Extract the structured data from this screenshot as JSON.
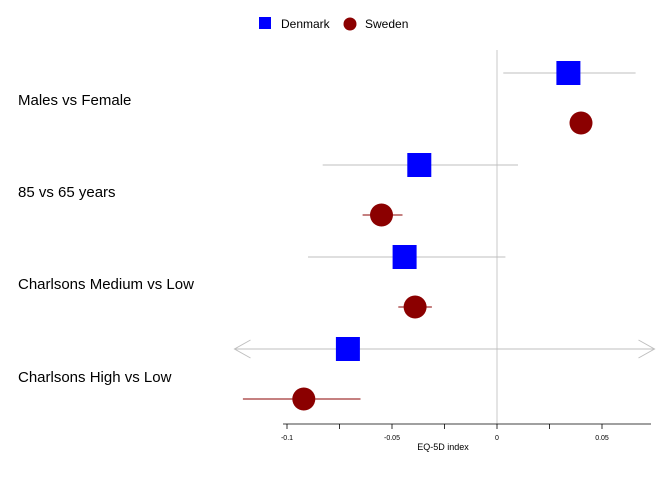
{
  "chart_data": {
    "type": "forest",
    "xlabel": "EQ-5D index",
    "xlim": [
      -0.125,
      0.075
    ],
    "xticks": [
      -0.1,
      -0.05,
      0,
      0.05
    ],
    "xtick_labels": [
      "-0.1",
      "-0.05",
      "0",
      "0.05"
    ],
    "reference_line": 0,
    "legend_position": "top-center",
    "categories": [
      "Males vs Female",
      "85 vs 65 years",
      "Charlsons Medium vs Low",
      "Charlsons High vs Low"
    ],
    "series": [
      {
        "name": "Denmark",
        "marker": "square",
        "color": "#0000ff",
        "ci_color": "#bfbfbf",
        "estimates": [
          0.034,
          -0.037,
          -0.044,
          -0.071
        ],
        "lower": [
          0.003,
          -0.083,
          -0.09,
          -0.125
        ],
        "upper": [
          0.066,
          0.01,
          0.004,
          0.075
        ],
        "truncated_low": [
          false,
          false,
          false,
          true
        ],
        "truncated_high": [
          false,
          false,
          false,
          true
        ]
      },
      {
        "name": "Sweden",
        "marker": "circle",
        "color": "#8b0000",
        "ci_color": "#8b0000",
        "estimates": [
          0.04,
          -0.055,
          -0.039,
          -0.092
        ],
        "lower": [
          0.04,
          -0.064,
          -0.047,
          -0.121
        ],
        "upper": [
          0.04,
          -0.045,
          -0.031,
          -0.065
        ],
        "truncated_low": [
          false,
          false,
          false,
          false
        ],
        "truncated_high": [
          false,
          false,
          false,
          false
        ]
      }
    ]
  }
}
